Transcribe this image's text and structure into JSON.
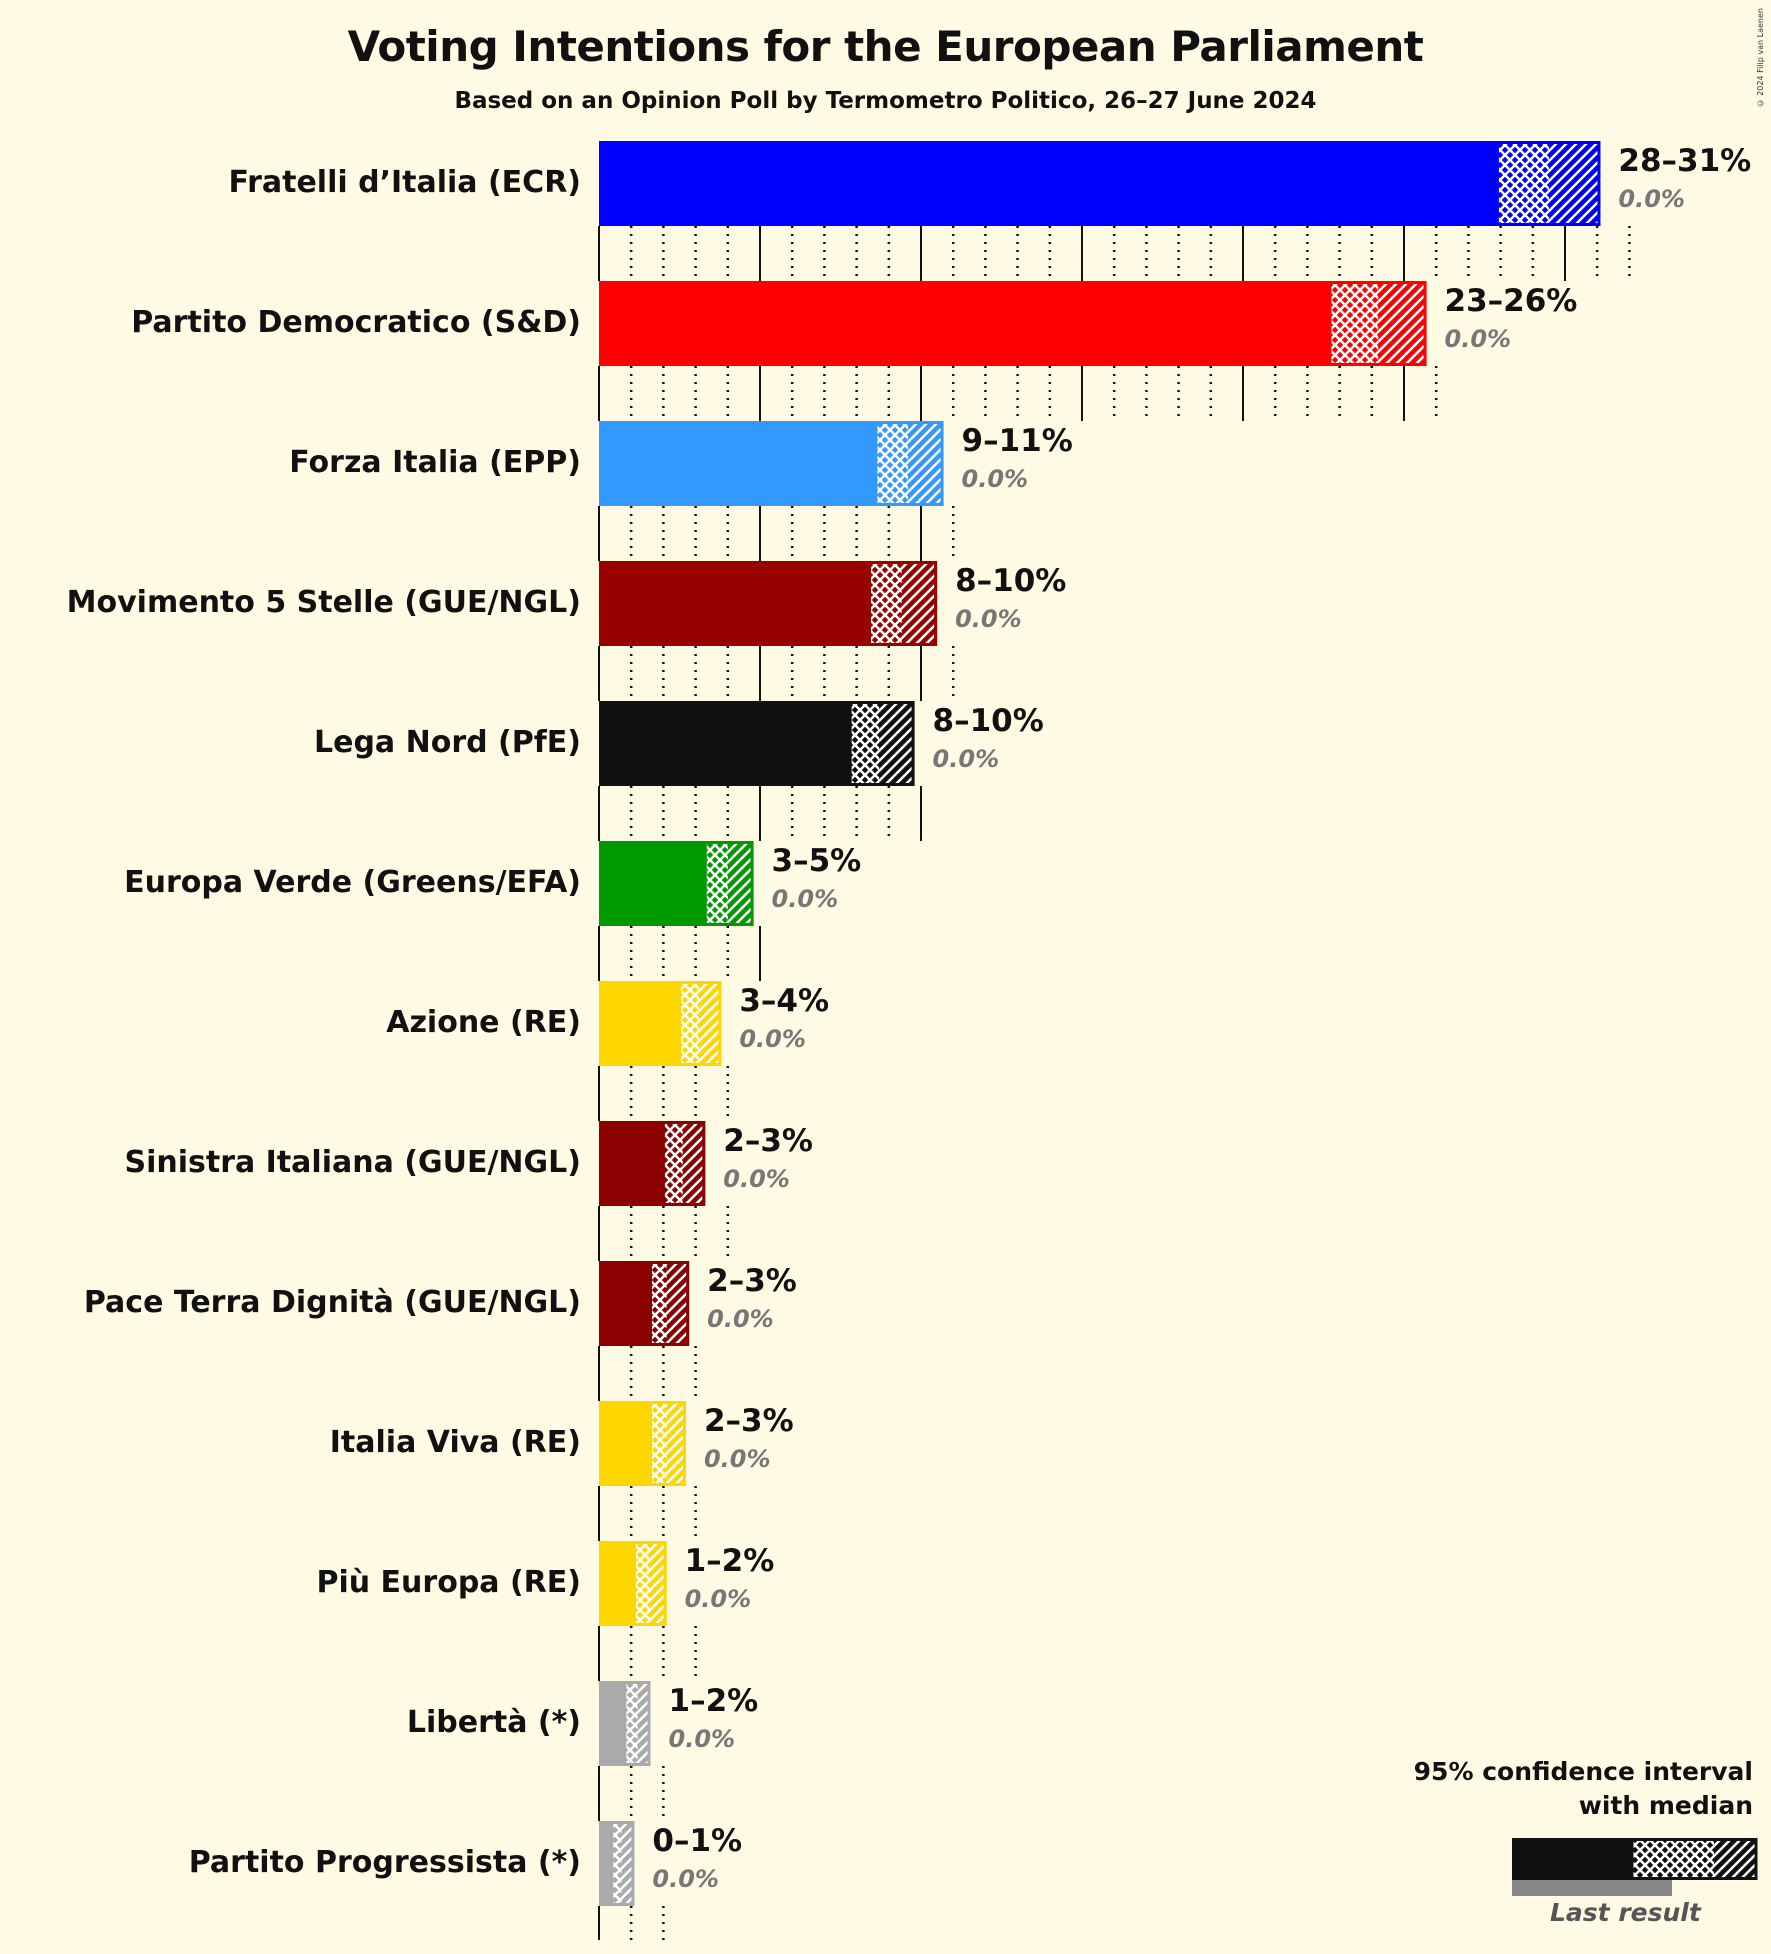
{
  "header": {
    "title": "Voting Intentions for the European Parliament",
    "subtitle": "Based on an Opinion Poll by Termometro Politico, 26–27 June 2024",
    "copyright": "© 2024 Filip van Laenen"
  },
  "legend": {
    "line1": "95% confidence interval",
    "line2": "with median",
    "last_result": "Last result"
  },
  "chart_data": {
    "type": "bar",
    "orientation": "horizontal",
    "title": "Voting Intentions for the European Parliament",
    "subtitle": "Based on an Opinion Poll by Termometro Politico, 26–27 June 2024",
    "xlabel": "",
    "ylabel": "",
    "xlim": [
      0,
      31
    ],
    "gridlines": {
      "major_every": 5,
      "minor_every": 1
    },
    "legend_position": "bottom-right",
    "categories": [
      "Fratelli d’Italia (ECR)",
      "Partito Democratico (S&D)",
      "Forza Italia (EPP)",
      "Movimento 5 Stelle (GUE/NGL)",
      "Lega Nord (PfE)",
      "Europa Verde (Greens/EFA)",
      "Azione (RE)",
      "Sinistra Italiana (GUE/NGL)",
      "Pace Terra Dignità (GUE/NGL)",
      "Italia Viva (RE)",
      "Più Europa (RE)",
      "Libertà (*)",
      "Partito Progressista (*)"
    ],
    "series": [
      {
        "name": "95% CI lower",
        "values": [
          27.9,
          22.7,
          8.6,
          8.4,
          7.8,
          3.3,
          2.5,
          2.0,
          1.6,
          1.6,
          1.1,
          0.8,
          0.4
        ]
      },
      {
        "name": "Median",
        "values": [
          29.5,
          24.2,
          9.6,
          9.4,
          8.7,
          4.0,
          3.1,
          2.6,
          2.1,
          2.1,
          1.6,
          1.2,
          0.7
        ]
      },
      {
        "name": "95% CI upper",
        "values": [
          31.1,
          25.7,
          10.7,
          10.5,
          9.8,
          4.8,
          3.8,
          3.3,
          2.8,
          2.7,
          2.1,
          1.6,
          1.1
        ]
      },
      {
        "name": "Last result",
        "values": [
          0.0,
          0.0,
          0.0,
          0.0,
          0.0,
          0.0,
          0.0,
          0.0,
          0.0,
          0.0,
          0.0,
          0.0,
          0.0
        ]
      }
    ],
    "parties": [
      {
        "name": "Fratelli d’Italia (ECR)",
        "range": "28–31%",
        "last": "0.0%",
        "color": "#0000FF",
        "lo": 27.9,
        "med": 29.5,
        "hi": 31.1
      },
      {
        "name": "Partito Democratico (S&D)",
        "range": "23–26%",
        "last": "0.0%",
        "color": "#FF0000",
        "lo": 22.7,
        "med": 24.2,
        "hi": 25.7
      },
      {
        "name": "Forza Italia (EPP)",
        "range": "9–11%",
        "last": "0.0%",
        "color": "#3399FF",
        "lo": 8.6,
        "med": 9.6,
        "hi": 10.7
      },
      {
        "name": "Movimento 5 Stelle (GUE/NGL)",
        "range": "8–10%",
        "last": "0.0%",
        "color": "#990000",
        "lo": 8.4,
        "med": 9.4,
        "hi": 10.5
      },
      {
        "name": "Lega Nord (PfE)",
        "range": "8–10%",
        "last": "0.0%",
        "color": "#111111",
        "lo": 7.8,
        "med": 8.7,
        "hi": 9.8
      },
      {
        "name": "Europa Verde (Greens/EFA)",
        "range": "3–5%",
        "last": "0.0%",
        "color": "#009900",
        "lo": 3.3,
        "med": 4.0,
        "hi": 4.8
      },
      {
        "name": "Azione (RE)",
        "range": "3–4%",
        "last": "0.0%",
        "color": "#FFD700",
        "lo": 2.5,
        "med": 3.1,
        "hi": 3.8
      },
      {
        "name": "Sinistra Italiana (GUE/NGL)",
        "range": "2–3%",
        "last": "0.0%",
        "color": "#8B0000",
        "lo": 2.0,
        "med": 2.6,
        "hi": 3.3
      },
      {
        "name": "Pace Terra Dignità (GUE/NGL)",
        "range": "2–3%",
        "last": "0.0%",
        "color": "#8B0000",
        "lo": 1.6,
        "med": 2.1,
        "hi": 2.8
      },
      {
        "name": "Italia Viva (RE)",
        "range": "2–3%",
        "last": "0.0%",
        "color": "#FFD700",
        "lo": 1.6,
        "med": 2.1,
        "hi": 2.7
      },
      {
        "name": "Più Europa (RE)",
        "range": "1–2%",
        "last": "0.0%",
        "color": "#FFD700",
        "lo": 1.1,
        "med": 1.6,
        "hi": 2.1
      },
      {
        "name": "Libertà (*)",
        "range": "1–2%",
        "last": "0.0%",
        "color": "#AAAAAA",
        "lo": 0.8,
        "med": 1.2,
        "hi": 1.6
      },
      {
        "name": "Partito Progressista (*)",
        "range": "0–1%",
        "last": "0.0%",
        "color": "#AAAAAA",
        "lo": 0.4,
        "med": 0.7,
        "hi": 1.1
      }
    ]
  }
}
